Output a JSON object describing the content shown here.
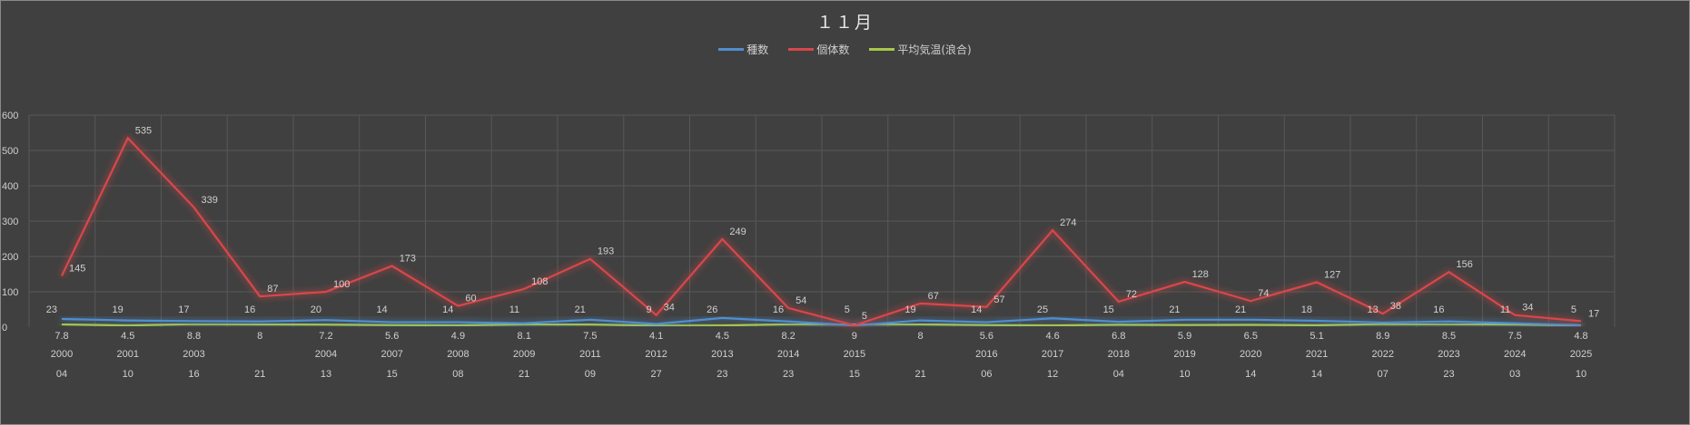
{
  "chart_data": {
    "type": "line",
    "title": "１１月",
    "xlabel": "",
    "ylabel": "",
    "ylim": [
      0,
      600
    ],
    "yticks": [
      0,
      100,
      200,
      300,
      400,
      500,
      600
    ],
    "grid": true,
    "legend_position": "top-center",
    "categories_year": [
      "2000",
      "2001",
      "2003",
      "",
      "2004",
      "2007",
      "2008",
      "2009",
      "2011",
      "2012",
      "2013",
      "2014",
      "2015",
      "",
      "2016",
      "2017",
      "2018",
      "2019",
      "2020",
      "2021",
      "2022",
      "2023",
      "2024",
      "2025"
    ],
    "categories_day": [
      "04",
      "10",
      "16",
      "21",
      "13",
      "15",
      "08",
      "21",
      "09",
      "27",
      "23",
      "23",
      "15",
      "21",
      "06",
      "12",
      "04",
      "10",
      "14",
      "14",
      "07",
      "23",
      "03",
      "10"
    ],
    "series": [
      {
        "name": "種数",
        "color": "#4f8fd0",
        "values": [
          23,
          19,
          17,
          16,
          20,
          14,
          14,
          11,
          21,
          9,
          26,
          16,
          5,
          19,
          14,
          25,
          15,
          21,
          21,
          18,
          13,
          16,
          11,
          5
        ]
      },
      {
        "name": "個体数",
        "color": "#d9474a",
        "values": [
          145,
          535,
          339,
          87,
          100,
          173,
          60,
          108,
          193,
          34,
          249,
          54,
          5,
          67,
          57,
          274,
          72,
          128,
          74,
          127,
          38,
          156,
          34,
          17
        ]
      },
      {
        "name": "平均気温(浪合)",
        "color": "#a8c84a",
        "values": [
          7.8,
          4.5,
          8.8,
          8.0,
          7.2,
          5.6,
          4.9,
          8.1,
          7.5,
          4.1,
          4.5,
          8.2,
          9,
          8,
          5.6,
          4.6,
          6.8,
          5.9,
          6.5,
          5.1,
          8.9,
          8.5,
          7.5,
          4.8
        ]
      }
    ]
  }
}
